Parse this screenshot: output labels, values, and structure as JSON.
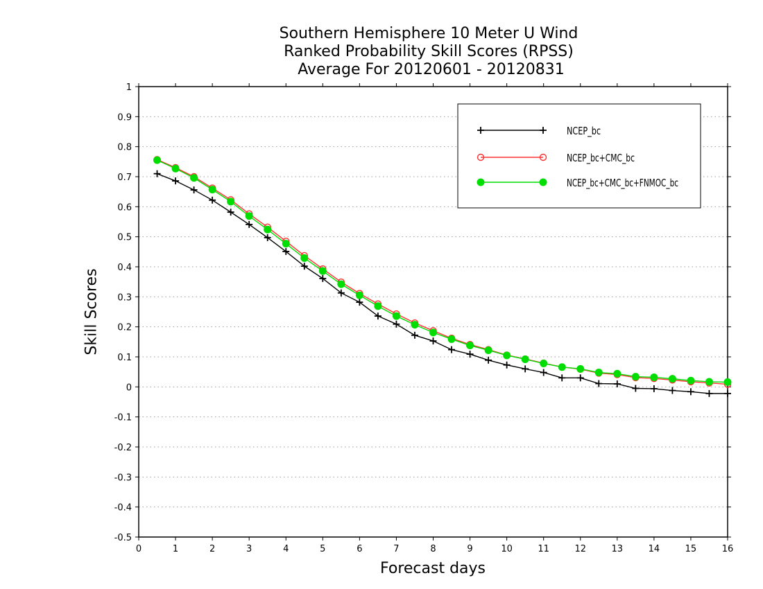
{
  "chart_data": {
    "type": "line",
    "title": [
      "Southern Hemisphere 10 Meter U Wind",
      "Ranked Probability Skill Scores (RPSS)",
      " Average For 20120601 - 20120831"
    ],
    "xlabel": "Forecast days",
    "ylabel": "Skill Scores",
    "xlim": [
      0,
      16
    ],
    "ylim": [
      -0.5,
      1
    ],
    "xticks": [
      0,
      1,
      2,
      3,
      4,
      5,
      6,
      7,
      8,
      9,
      10,
      11,
      12,
      13,
      14,
      15,
      16
    ],
    "yticks": [
      -0.5,
      -0.4,
      -0.3,
      -0.2,
      -0.1,
      0,
      0.1,
      0.2,
      0.3,
      0.4,
      0.5,
      0.6,
      0.7,
      0.8,
      0.9,
      1
    ],
    "grid": "horizontal dotted",
    "legend_position": "top-right",
    "x": [
      0.5,
      1,
      1.5,
      2,
      2.5,
      3,
      3.5,
      4,
      4.5,
      5,
      5.5,
      6,
      6.5,
      7,
      7.5,
      8,
      8.5,
      9,
      9.5,
      10,
      10.5,
      11,
      11.5,
      12,
      12.5,
      13,
      13.5,
      14,
      14.5,
      15,
      15.5,
      16
    ],
    "series": [
      {
        "name": "NCEP_bc",
        "color": "#000000",
        "marker": "plus",
        "values": [
          0.71,
          0.686,
          0.656,
          0.622,
          0.582,
          0.541,
          0.497,
          0.451,
          0.402,
          0.361,
          0.313,
          0.282,
          0.236,
          0.209,
          0.172,
          0.153,
          0.124,
          0.109,
          0.089,
          0.073,
          0.06,
          0.048,
          0.03,
          0.03,
          0.011,
          0.01,
          -0.005,
          -0.006,
          -0.012,
          -0.016,
          -0.022,
          -0.022
        ]
      },
      {
        "name": "NCEP_bc+CMC_bc",
        "color": "#ff3030",
        "marker": "open-circle",
        "values": [
          0.757,
          0.73,
          0.7,
          0.662,
          0.623,
          0.576,
          0.532,
          0.485,
          0.437,
          0.393,
          0.349,
          0.311,
          0.276,
          0.243,
          0.213,
          0.187,
          0.162,
          0.141,
          0.124,
          0.106,
          0.093,
          0.079,
          0.066,
          0.059,
          0.046,
          0.041,
          0.031,
          0.028,
          0.023,
          0.017,
          0.013,
          0.009
        ]
      },
      {
        "name": "NCEP_bc+CMC_bc+FNMOC_bc",
        "color": "#00dd00",
        "marker": "filled-circle",
        "values": [
          0.755,
          0.727,
          0.696,
          0.657,
          0.617,
          0.569,
          0.524,
          0.477,
          0.429,
          0.386,
          0.342,
          0.305,
          0.269,
          0.236,
          0.207,
          0.181,
          0.159,
          0.138,
          0.122,
          0.105,
          0.092,
          0.078,
          0.066,
          0.06,
          0.048,
          0.044,
          0.034,
          0.032,
          0.027,
          0.021,
          0.017,
          0.016
        ]
      }
    ]
  }
}
